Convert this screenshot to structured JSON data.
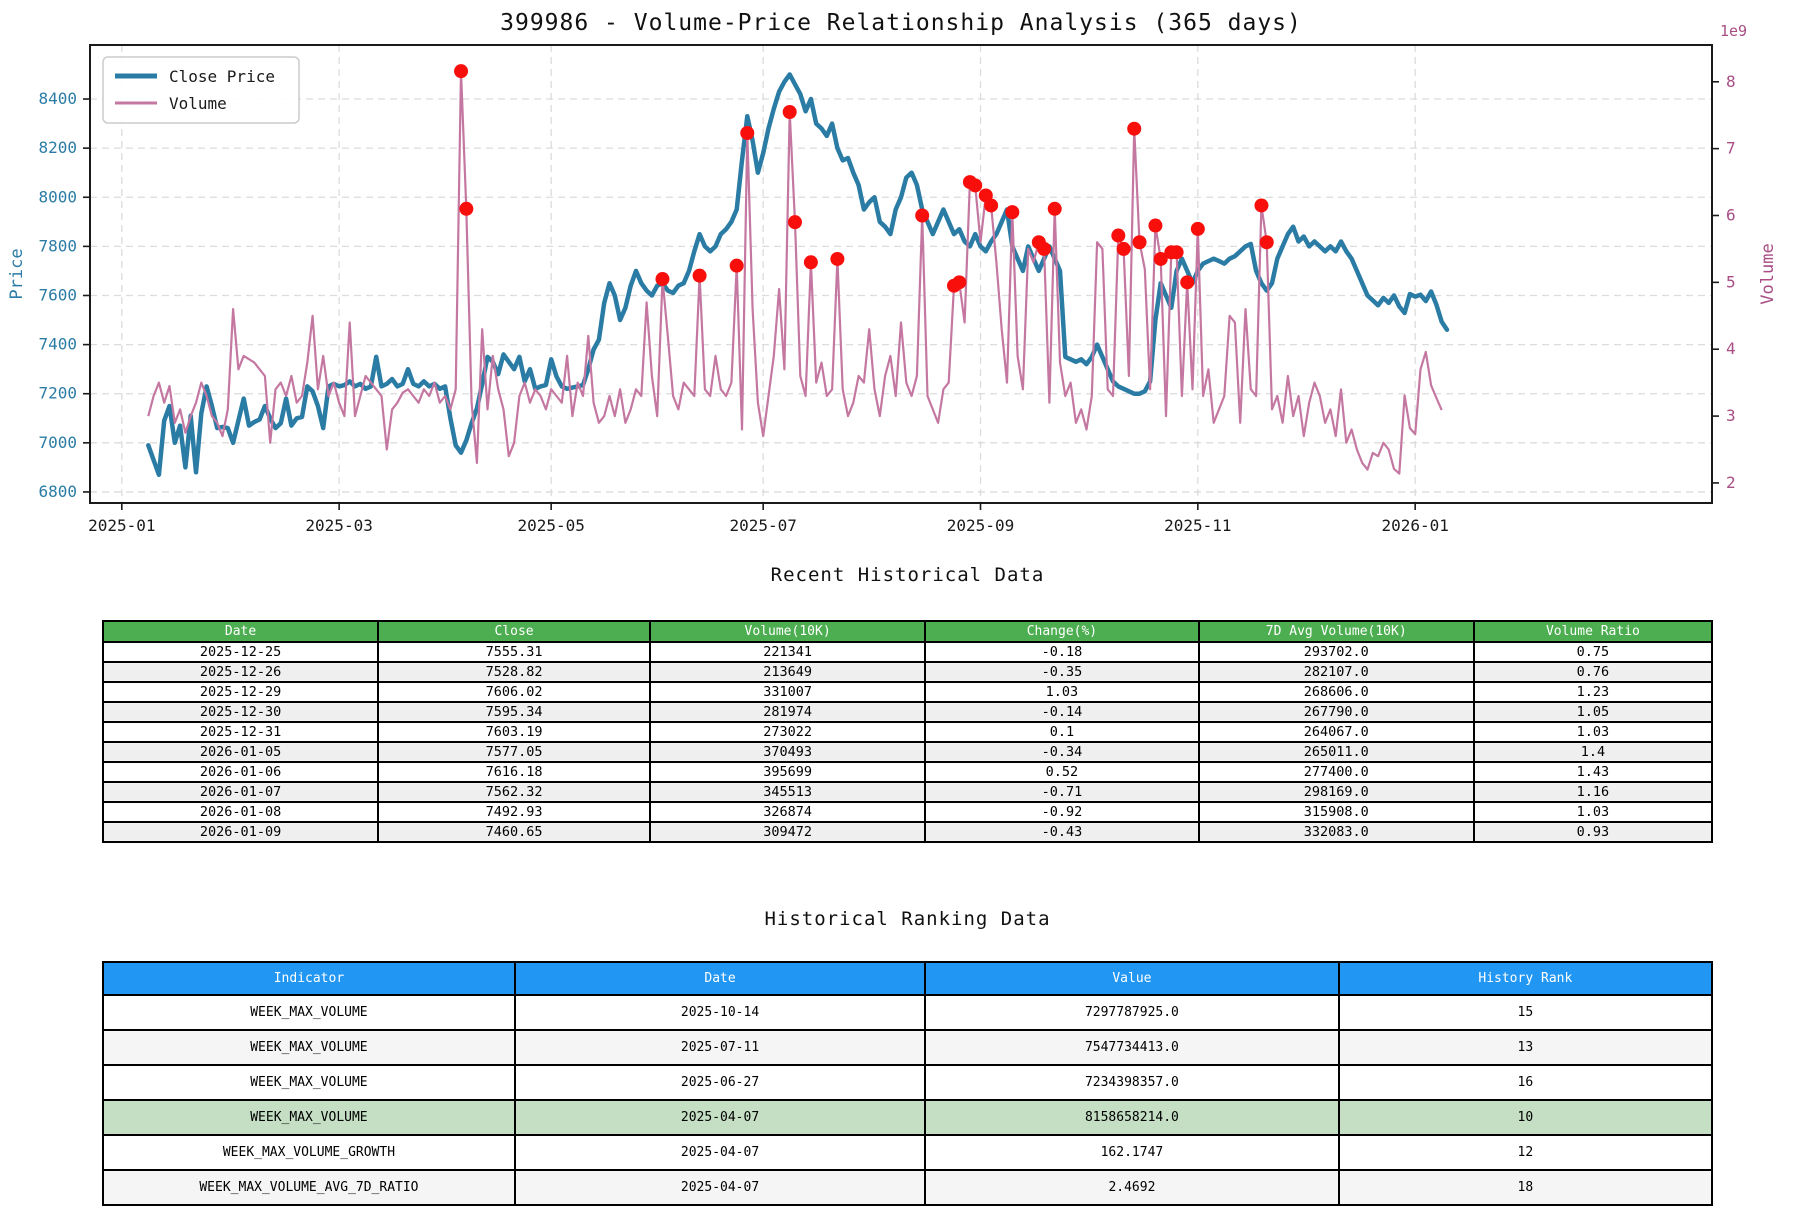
{
  "chart_data": {
    "type": "line",
    "title": "399986 - Volume-Price Relationship Analysis (365 days)",
    "grid": true,
    "legend": {
      "position": "upper-left",
      "entries": [
        "Close Price",
        "Volume"
      ]
    },
    "x_range": [
      -11,
      295
    ],
    "x_ticks": {
      "labels": [
        "2025-01",
        "2025-03",
        "2025-05",
        "2025-07",
        "2025-09",
        "2025-11",
        "2026-01"
      ],
      "days": [
        -5,
        36,
        76,
        116,
        157,
        198,
        239
      ]
    },
    "left_axis": {
      "label": "Price",
      "color": "#2b7ca5",
      "ticks": [
        6800,
        7000,
        7200,
        7400,
        7600,
        7800,
        8000,
        8200,
        8400
      ],
      "range": [
        6755,
        8620
      ]
    },
    "right_axis": {
      "label": "Volume",
      "color": "#a84e84",
      "ticks": [
        2,
        3,
        4,
        5,
        6,
        7,
        8
      ],
      "range": [
        1.7,
        8.55
      ],
      "offset_text": "1e9"
    },
    "series": [
      {
        "name": "Close Price",
        "axis": "left",
        "color": "#2b7ca5",
        "width": 4.5,
        "values": [
          6990,
          6930,
          6870,
          7090,
          7150,
          7000,
          7070,
          6900,
          7110,
          6880,
          7120,
          7230,
          7150,
          7060,
          7065,
          7060,
          7000,
          7090,
          7180,
          7070,
          7085,
          7095,
          7150,
          7100,
          7060,
          7080,
          7180,
          7070,
          7100,
          7105,
          7230,
          7210,
          7150,
          7060,
          7230,
          7240,
          7230,
          7235,
          7250,
          7230,
          7240,
          7220,
          7230,
          7350,
          7230,
          7240,
          7260,
          7230,
          7240,
          7300,
          7240,
          7230,
          7250,
          7230,
          7240,
          7220,
          7230,
          7100,
          6990,
          6960,
          7010,
          7080,
          7140,
          7240,
          7350,
          7330,
          7280,
          7360,
          7330,
          7300,
          7350,
          7250,
          7300,
          7220,
          7230,
          7235,
          7340,
          7270,
          7230,
          7220,
          7225,
          7230,
          7235,
          7300,
          7380,
          7420,
          7570,
          7650,
          7600,
          7500,
          7550,
          7640,
          7700,
          7650,
          7620,
          7600,
          7640,
          7650,
          7620,
          7610,
          7640,
          7650,
          7700,
          7780,
          7850,
          7800,
          7780,
          7800,
          7850,
          7870,
          7900,
          7950,
          8150,
          8330,
          8230,
          8100,
          8180,
          8280,
          8360,
          8430,
          8470,
          8500,
          8460,
          8420,
          8350,
          8400,
          8300,
          8280,
          8250,
          8300,
          8200,
          8150,
          8160,
          8100,
          8050,
          7950,
          7980,
          8000,
          7900,
          7880,
          7850,
          7950,
          8000,
          8080,
          8100,
          8050,
          7950,
          7900,
          7850,
          7900,
          7950,
          7900,
          7850,
          7870,
          7820,
          7800,
          7850,
          7800,
          7780,
          7820,
          7850,
          7900,
          7950,
          7800,
          7750,
          7700,
          7800,
          7750,
          7700,
          7750,
          7800,
          7750,
          7700,
          7350,
          7340,
          7330,
          7340,
          7320,
          7350,
          7400,
          7350,
          7300,
          7250,
          7230,
          7220,
          7210,
          7200,
          7200,
          7210,
          7250,
          7500,
          7650,
          7600,
          7550,
          7700,
          7750,
          7700,
          7650,
          7700,
          7730,
          7740,
          7750,
          7740,
          7730,
          7750,
          7760,
          7780,
          7800,
          7810,
          7700,
          7650,
          7620,
          7650,
          7750,
          7800,
          7850,
          7880,
          7820,
          7840,
          7800,
          7820,
          7800,
          7780,
          7800,
          7780,
          7820,
          7780,
          7750,
          7700,
          7650,
          7600,
          7580,
          7560,
          7590,
          7570,
          7600,
          7555.31,
          7528.82,
          7606.02,
          7595.34,
          7603.19,
          7577.05,
          7616.18,
          7562.32,
          7492.93,
          7460.65
        ]
      },
      {
        "name": "Volume",
        "axis": "right",
        "color": "#c478a1",
        "width": 2.2,
        "values": [
          3.0,
          3.3,
          3.5,
          3.2,
          3.45,
          2.9,
          3.1,
          2.75,
          3.0,
          3.2,
          3.5,
          3.3,
          3.0,
          2.9,
          2.7,
          3.1,
          4.6,
          3.7,
          3.9,
          3.85,
          3.8,
          3.7,
          3.6,
          2.6,
          3.4,
          3.5,
          3.3,
          3.6,
          3.2,
          3.3,
          3.8,
          4.5,
          3.4,
          3.9,
          3.3,
          3.5,
          3.2,
          3.0,
          4.4,
          3.0,
          3.3,
          3.6,
          3.5,
          3.4,
          3.3,
          2.5,
          3.1,
          3.2,
          3.35,
          3.4,
          3.3,
          3.2,
          3.4,
          3.3,
          3.5,
          3.2,
          3.3,
          3.1,
          3.4,
          8.159,
          6.1,
          3.2,
          2.3,
          4.3,
          3.1,
          3.9,
          3.4,
          3.1,
          2.4,
          2.6,
          3.3,
          3.5,
          3.2,
          3.4,
          3.3,
          3.1,
          3.4,
          3.3,
          3.2,
          3.9,
          3.0,
          3.5,
          3.3,
          4.2,
          3.2,
          2.9,
          3.0,
          3.3,
          3.0,
          3.4,
          2.9,
          3.1,
          3.4,
          3.3,
          4.7,
          3.6,
          3.0,
          5.05,
          4.2,
          3.3,
          3.1,
          3.5,
          3.4,
          3.3,
          5.1,
          3.4,
          3.3,
          3.9,
          3.4,
          3.3,
          3.5,
          5.25,
          2.8,
          7.234,
          4.6,
          3.2,
          2.7,
          3.3,
          3.9,
          4.9,
          3.7,
          7.548,
          5.9,
          3.6,
          3.3,
          5.3,
          3.5,
          3.8,
          3.3,
          3.4,
          5.35,
          3.4,
          3.0,
          3.2,
          3.6,
          3.5,
          4.3,
          3.4,
          3.0,
          3.6,
          3.9,
          3.3,
          4.4,
          3.5,
          3.3,
          3.6,
          6.0,
          3.3,
          3.1,
          2.9,
          3.4,
          3.5,
          4.95,
          5.0,
          4.4,
          6.5,
          6.45,
          5.6,
          6.3,
          6.15,
          5.3,
          4.3,
          3.5,
          6.05,
          3.9,
          3.4,
          5.5,
          5.3,
          5.6,
          5.5,
          3.2,
          6.1,
          3.8,
          3.3,
          3.5,
          2.9,
          3.1,
          2.8,
          3.3,
          5.6,
          5.5,
          3.4,
          3.3,
          5.7,
          5.5,
          3.6,
          7.298,
          5.6,
          5.2,
          3.4,
          5.85,
          5.35,
          3.0,
          5.45,
          5.45,
          3.3,
          5.0,
          3.4,
          5.8,
          3.3,
          3.7,
          2.9,
          3.1,
          3.3,
          4.5,
          4.4,
          2.9,
          4.6,
          3.4,
          3.3,
          6.15,
          5.6,
          3.1,
          3.3,
          2.9,
          3.6,
          3.0,
          3.3,
          2.7,
          3.2,
          3.5,
          3.3,
          2.9,
          3.1,
          2.7,
          3.4,
          2.6,
          2.8,
          2.5,
          2.3,
          2.2,
          2.45,
          2.4,
          2.6,
          2.5,
          2.21,
          2.14,
          3.31,
          2.82,
          2.73,
          3.7,
          3.96,
          3.46,
          3.27,
          3.09
        ]
      }
    ],
    "markers": {
      "name": "volume-peak-dots",
      "color": "#f80f0c",
      "radius": 7,
      "points": [
        [
          59,
          8.159
        ],
        [
          60,
          6.1
        ],
        [
          97,
          5.05
        ],
        [
          104,
          5.1
        ],
        [
          111,
          5.25
        ],
        [
          113,
          7.234
        ],
        [
          121,
          7.548
        ],
        [
          122,
          5.9
        ],
        [
          125,
          5.3
        ],
        [
          130,
          5.35
        ],
        [
          146,
          6.0
        ],
        [
          152,
          4.95
        ],
        [
          153,
          5.0
        ],
        [
          155,
          6.5
        ],
        [
          156,
          6.45
        ],
        [
          158,
          6.3
        ],
        [
          159,
          6.15
        ],
        [
          163,
          6.05
        ],
        [
          168,
          5.6
        ],
        [
          169,
          5.5
        ],
        [
          171,
          6.1
        ],
        [
          183,
          5.7
        ],
        [
          184,
          5.5
        ],
        [
          186,
          7.298
        ],
        [
          187,
          5.6
        ],
        [
          190,
          5.85
        ],
        [
          191,
          5.35
        ],
        [
          193,
          5.45
        ],
        [
          194,
          5.45
        ],
        [
          196,
          5.0
        ],
        [
          198,
          5.8
        ],
        [
          210,
          6.15
        ],
        [
          211,
          5.6
        ]
      ]
    }
  },
  "recent_table": {
    "title": "Recent Historical Data",
    "header_bg": "#4cae50",
    "alt_row_bg": "#efefef",
    "columns": [
      "Date",
      "Close",
      "Volume(10K)",
      "Change(%)",
      "7D Avg Volume(10K)",
      "Volume Ratio"
    ],
    "rows": [
      [
        "2025-12-25",
        "7555.31",
        "221341",
        "-0.18",
        "293702.0",
        "0.75"
      ],
      [
        "2025-12-26",
        "7528.82",
        "213649",
        "-0.35",
        "282107.0",
        "0.76"
      ],
      [
        "2025-12-29",
        "7606.02",
        "331007",
        "1.03",
        "268606.0",
        "1.23"
      ],
      [
        "2025-12-30",
        "7595.34",
        "281974",
        "-0.14",
        "267790.0",
        "1.05"
      ],
      [
        "2025-12-31",
        "7603.19",
        "273022",
        "0.1",
        "264067.0",
        "1.03"
      ],
      [
        "2026-01-05",
        "7577.05",
        "370493",
        "-0.34",
        "265011.0",
        "1.4"
      ],
      [
        "2026-01-06",
        "7616.18",
        "395699",
        "0.52",
        "277400.0",
        "1.43"
      ],
      [
        "2026-01-07",
        "7562.32",
        "345513",
        "-0.71",
        "298169.0",
        "1.16"
      ],
      [
        "2026-01-08",
        "7492.93",
        "326874",
        "-0.92",
        "315908.0",
        "1.03"
      ],
      [
        "2026-01-09",
        "7460.65",
        "309472",
        "-0.43",
        "332083.0",
        "0.93"
      ]
    ]
  },
  "ranking_table": {
    "title": "Historical Ranking Data",
    "header_bg": "#2196f3",
    "alt_row_bg": "#f5f5f5",
    "highlight_row": 3,
    "highlight_color": "#c5dfc5",
    "columns": [
      "Indicator",
      "Date",
      "Value",
      "History Rank"
    ],
    "rows": [
      [
        "WEEK_MAX_VOLUME",
        "2025-10-14",
        "7297787925.0",
        "15"
      ],
      [
        "WEEK_MAX_VOLUME",
        "2025-07-11",
        "7547734413.0",
        "13"
      ],
      [
        "WEEK_MAX_VOLUME",
        "2025-06-27",
        "7234398357.0",
        "16"
      ],
      [
        "WEEK_MAX_VOLUME",
        "2025-04-07",
        "8158658214.0",
        "10"
      ],
      [
        "WEEK_MAX_VOLUME_GROWTH",
        "2025-04-07",
        "162.1747",
        "12"
      ],
      [
        "WEEK_MAX_VOLUME_AVG_7D_RATIO",
        "2025-04-07",
        "2.4692",
        "18"
      ]
    ]
  }
}
